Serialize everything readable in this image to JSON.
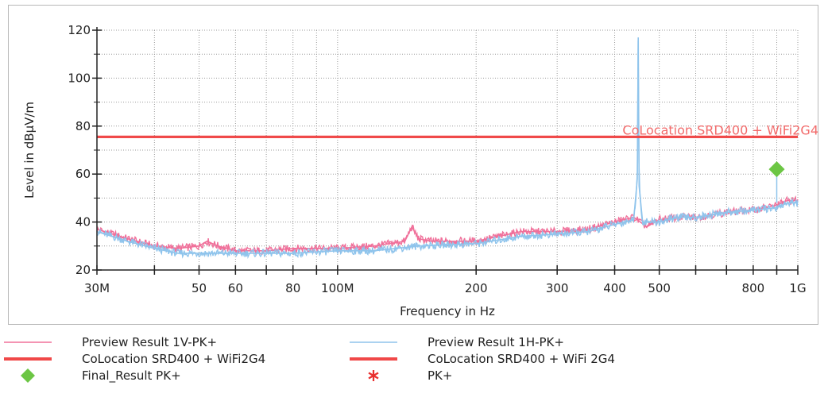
{
  "chart_data": {
    "type": "line",
    "xlabel": "Frequency in Hz",
    "ylabel": "Level in dBµV/m",
    "x_scale": "log",
    "xlim": [
      30000000,
      1000000000
    ],
    "ylim": [
      20,
      120
    ],
    "x_ticks": [
      {
        "value": 30000000,
        "label": "30M"
      },
      {
        "value": 50000000,
        "label": "50"
      },
      {
        "value": 60000000,
        "label": "60"
      },
      {
        "value": 80000000,
        "label": "80"
      },
      {
        "value": 100000000,
        "label": "100M"
      },
      {
        "value": 200000000,
        "label": "200"
      },
      {
        "value": 300000000,
        "label": "300"
      },
      {
        "value": 400000000,
        "label": "400"
      },
      {
        "value": 500000000,
        "label": "500"
      },
      {
        "value": 800000000,
        "label": "800"
      },
      {
        "value": 1000000000,
        "label": "1G"
      }
    ],
    "x_minor_ticks": [
      40000000,
      70000000,
      90000000,
      600000000,
      700000000,
      900000000
    ],
    "y_ticks": [
      20,
      40,
      60,
      80,
      100,
      120
    ],
    "grid": true,
    "legend_position": "bottom",
    "series": [
      {
        "name": "Preview Result 1V-PK+",
        "color": "#f0709a",
        "x": [
          30000000,
          35000000,
          40000000,
          45000000,
          50000000,
          52000000,
          55000000,
          60000000,
          70000000,
          80000000,
          100000000,
          120000000,
          140000000,
          145000000,
          150000000,
          160000000,
          200000000,
          250000000,
          300000000,
          350000000,
          400000000,
          440000000,
          470000000,
          500000000,
          550000000,
          600000000,
          700000000,
          800000000,
          900000000,
          950000000,
          1000000000
        ],
        "y": [
          37,
          33,
          30,
          29,
          30,
          32,
          30,
          28,
          28,
          29,
          29,
          30,
          32,
          38,
          33,
          32,
          32,
          36,
          36,
          37,
          40,
          42,
          38,
          41,
          42,
          42,
          44,
          45,
          47,
          49,
          49
        ]
      },
      {
        "name": "Preview Result 1H-PK+",
        "color": "#8fc4ec",
        "x": [
          30000000,
          35000000,
          40000000,
          45000000,
          50000000,
          55000000,
          60000000,
          70000000,
          80000000,
          100000000,
          120000000,
          150000000,
          200000000,
          250000000,
          300000000,
          350000000,
          400000000,
          440000000,
          448000000,
          450000000,
          452000000,
          460000000,
          470000000,
          500000000,
          550000000,
          600000000,
          700000000,
          800000000,
          900000000,
          950000000,
          1000000000
        ],
        "y": [
          36,
          32,
          29,
          27,
          27,
          27,
          27,
          27,
          27,
          28,
          28,
          30,
          31,
          34,
          35,
          36,
          39,
          41,
          58,
          117,
          55,
          40,
          40,
          40,
          42,
          42,
          44,
          45,
          46,
          48,
          48
        ]
      },
      {
        "name": "CoLocation SRD400 + WiFi2G4",
        "color": "#f04848",
        "x": [
          30000000,
          1000000000
        ],
        "y": [
          75.5,
          75.5
        ]
      },
      {
        "name": "CoLocation SRD400 + WiFi 2G4",
        "color": "#f04848",
        "x": [
          30000000,
          1000000000
        ],
        "y": [
          75.5,
          75.5
        ]
      }
    ],
    "limit_label": "CoLocation SRD400 + WiFi2G4",
    "markers": [
      {
        "name": "Final_Result PK+",
        "type": "diamond",
        "color": "#6cc644",
        "x": 900000000,
        "y": 62
      }
    ],
    "legend": [
      {
        "label": "Preview Result 1V-PK+",
        "kind": "thin-line",
        "color": "#f0709a"
      },
      {
        "label": "Preview Result 1H-PK+",
        "kind": "thin-line",
        "color": "#8fc4ec"
      },
      {
        "label": "CoLocation SRD400 + WiFi2G4",
        "kind": "thick-line",
        "color": "#f04848"
      },
      {
        "label": "CoLocation SRD400 + WiFi 2G4",
        "kind": "thick-line",
        "color": "#f04848"
      },
      {
        "label": "Final_Result PK+",
        "kind": "diamond",
        "color": "#6cc644"
      },
      {
        "label": "PK+",
        "kind": "asterisk",
        "color": "#e8302f"
      }
    ]
  }
}
